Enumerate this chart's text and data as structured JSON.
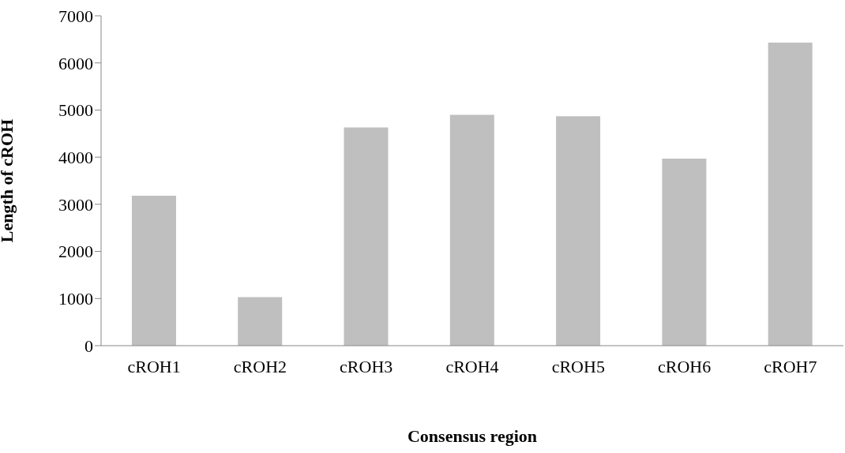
{
  "chart_data": {
    "type": "bar",
    "xlabel": "Consensus region",
    "ylabel": "Length of cROH",
    "categories": [
      "cROH1",
      "cROH2",
      "cROH3",
      "cROH4",
      "cROH5",
      "cROH6",
      "cROH7"
    ],
    "values": [
      3180,
      1030,
      4630,
      4900,
      4870,
      3970,
      6430
    ],
    "color": "#bfbfbf",
    "ylim": [
      0,
      7000
    ],
    "yticks": [
      0,
      1000,
      2000,
      3000,
      4000,
      5000,
      6000,
      7000
    ],
    "grid": false
  }
}
